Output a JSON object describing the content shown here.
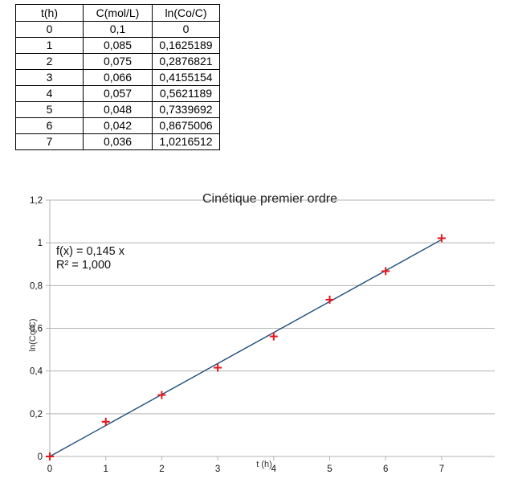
{
  "table": {
    "headers": [
      "t(h)",
      "C(mol/L)",
      "ln(Co/C)"
    ],
    "rows": [
      [
        "0",
        "0,1",
        "0"
      ],
      [
        "1",
        "0,085",
        "0,1625189"
      ],
      [
        "2",
        "0,075",
        "0,2876821"
      ],
      [
        "3",
        "0,066",
        "0,4155154"
      ],
      [
        "4",
        "0,057",
        "0,5621189"
      ],
      [
        "5",
        "0,048",
        "0,7339692"
      ],
      [
        "6",
        "0,042",
        "0,8675006"
      ],
      [
        "7",
        "0,036",
        "1,0216512"
      ]
    ]
  },
  "chart_data": {
    "type": "scatter",
    "title": "Cinétique premier ordre",
    "xlabel": "t (h)",
    "ylabel": "ln(Co/C)",
    "x": [
      0,
      1,
      2,
      3,
      4,
      5,
      6,
      7
    ],
    "y": [
      0,
      0.1625189,
      0.2876821,
      0.4155154,
      0.5621189,
      0.7339692,
      0.8675006,
      1.0216512
    ],
    "xlim": [
      0,
      7
    ],
    "ylim": [
      0,
      1.2
    ],
    "xticks": [
      "0",
      "1",
      "2",
      "3",
      "4",
      "5",
      "6",
      "7"
    ],
    "yticks": [
      "0",
      "0,2",
      "0,4",
      "0,6",
      "0,8",
      "1",
      "1,2"
    ],
    "grid": true,
    "marker_color": "#e8141c",
    "trendline": {
      "slope": 0.145,
      "intercept": 0,
      "color": "#1f4e79",
      "equation": "f(x) = 0,145 x",
      "r2": "R² = 1,000"
    }
  }
}
